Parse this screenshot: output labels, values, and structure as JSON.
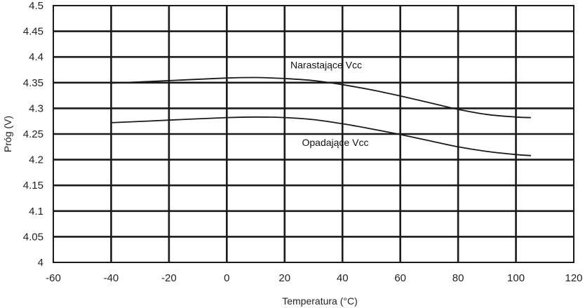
{
  "chart_data": {
    "type": "line",
    "title": "",
    "xlabel": "Temperatura (°C)",
    "ylabel": "Próg (V)",
    "xlim": [
      -60,
      120
    ],
    "ylim": [
      4,
      4.5
    ],
    "grid": true,
    "x_ticks": [
      -60,
      -40,
      -20,
      0,
      20,
      40,
      60,
      80,
      100,
      120
    ],
    "x_tick_labels": [
      "-60",
      "-40",
      "-20",
      "0",
      "20",
      "40",
      "60",
      "80",
      "100",
      "120"
    ],
    "y_ticks": [
      4,
      4.05,
      4.1,
      4.15,
      4.2,
      4.25,
      4.3,
      4.35,
      4.4,
      4.45,
      4.5
    ],
    "y_tick_labels": [
      "4",
      "4.05",
      "4.1",
      "4.15",
      "4.2",
      "4.25",
      "4.3",
      "4.35",
      "4.4",
      "4.45",
      "4.5"
    ],
    "series": [
      {
        "x": [
          -40,
          -20,
          0,
          10,
          20,
          30,
          40,
          50,
          60,
          70,
          80,
          90,
          100,
          105
        ],
        "y": [
          4.349,
          4.354,
          4.359,
          4.36,
          4.358,
          4.354,
          4.346,
          4.336,
          4.324,
          4.311,
          4.298,
          4.288,
          4.283,
          4.282
        ]
      },
      {
        "x": [
          -40,
          -20,
          0,
          10,
          20,
          30,
          40,
          50,
          60,
          70,
          80,
          90,
          100,
          105
        ],
        "y": [
          4.272,
          4.277,
          4.282,
          4.283,
          4.282,
          4.278,
          4.27,
          4.26,
          4.249,
          4.237,
          4.225,
          4.216,
          4.21,
          4.208
        ]
      }
    ],
    "annotations": [
      {
        "text": "Narastające Vcc",
        "x": 22,
        "y": 4.378
      },
      {
        "text": "Opadające Vcc",
        "x": 26,
        "y": 4.227
      }
    ]
  }
}
